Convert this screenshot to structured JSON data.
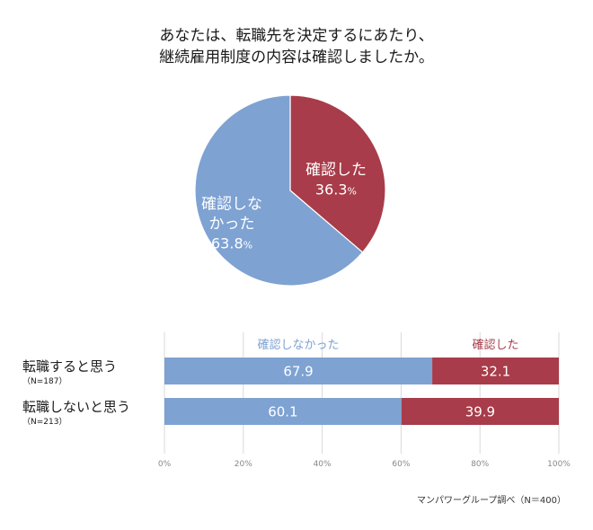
{
  "title_lines": [
    "あなたは、転職先を決定するにあたり、",
    "継続雇用制度の内容は確認しましたか。"
  ],
  "chart_data": [
    {
      "type": "pie",
      "slices": [
        {
          "label_lines": [
            "確認した"
          ],
          "value": 36.3,
          "display": "36.3",
          "color": "#a83c4a"
        },
        {
          "label_lines": [
            "確認しな",
            "かった"
          ],
          "value": 63.8,
          "display": "63.8",
          "color": "#7ea2d2"
        }
      ],
      "unit": "%"
    },
    {
      "type": "bar",
      "orientation": "horizontal",
      "stacked": true,
      "categories": [
        {
          "label": "転職すると思う",
          "sub": "（N=187）"
        },
        {
          "label": "転職しないと思う",
          "sub": "（N=213）"
        }
      ],
      "series": [
        {
          "name": "確認しなかった",
          "values": [
            67.9,
            60.1
          ],
          "display": [
            "67.9",
            "60.1"
          ],
          "color": "#7ea2d2"
        },
        {
          "name": "確認した",
          "values": [
            32.1,
            39.9
          ],
          "display": [
            "32.1",
            "39.9"
          ],
          "color": "#a83c4a"
        }
      ],
      "xlim": [
        0,
        100
      ],
      "xticks": [
        "0%",
        "20%",
        "40%",
        "60%",
        "80%",
        "100%"
      ]
    }
  ],
  "source_note": "マンパワーグループ調べ（N＝400）"
}
